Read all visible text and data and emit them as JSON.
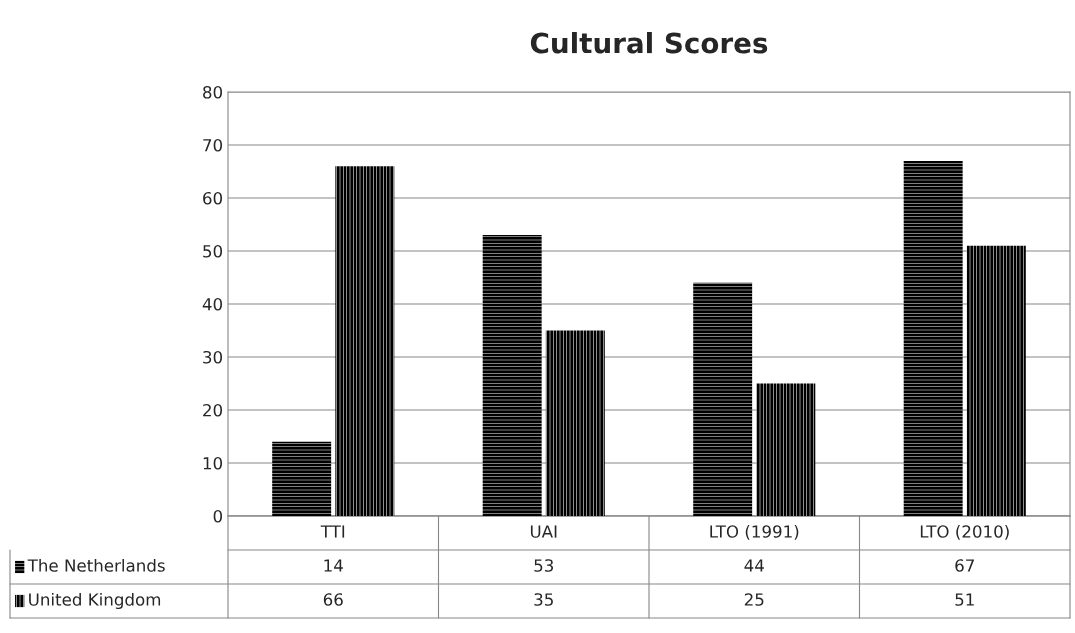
{
  "chart_data": {
    "type": "bar",
    "title": "Cultural Scores",
    "categories": [
      "TTI",
      "UAI",
      "LTO (1991)",
      "LTO (2010)"
    ],
    "series": [
      {
        "name": "The Netherlands",
        "color": "#000000",
        "values": [
          14,
          53,
          44,
          67
        ]
      },
      {
        "name": "United Kingdom",
        "color": "#000000",
        "values": [
          66,
          35,
          25,
          51
        ]
      }
    ],
    "ylim": [
      0,
      80
    ],
    "yticks": [
      0,
      10,
      20,
      30,
      40,
      50,
      60,
      70,
      80
    ],
    "grid": "y",
    "legend": "bottom",
    "data_labels": true
  }
}
